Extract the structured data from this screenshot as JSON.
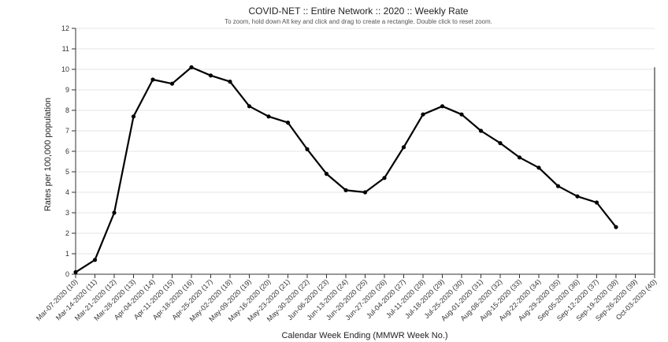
{
  "chart_data": {
    "type": "line",
    "title": "COVID-NET :: Entire Network :: 2020 :: Weekly Rate",
    "subtitle": "To zoom, hold down Alt key and click and drag to create a rectangle. Double click to reset zoom.",
    "xlabel": "Calendar Week Ending (MMWR Week No.)",
    "ylabel": "Rates per 100,000 population",
    "ylim": [
      0,
      12
    ],
    "yticks": [
      0,
      1,
      2,
      3,
      4,
      5,
      6,
      7,
      8,
      9,
      10,
      11,
      12
    ],
    "grid": true,
    "categories": [
      "Mar-07-2020 (10)",
      "Mar-14-2020 (11)",
      "Mar-21-2020 (12)",
      "Mar-28-2020 (13)",
      "Apr-04-2020 (14)",
      "Apr-11-2020 (15)",
      "Apr-18-2020 (16)",
      "Apr-25-2020 (17)",
      "May-02-2020 (18)",
      "May-09-2020 (19)",
      "May-16-2020 (20)",
      "May-23-2020 (21)",
      "May-30-2020 (22)",
      "Jun-06-2020 (23)",
      "Jun-13-2020 (24)",
      "Jun-20-2020 (25)",
      "Jun-27-2020 (26)",
      "Jul-04-2020 (27)",
      "Jul-11-2020 (28)",
      "Jul-18-2020 (29)",
      "Jul-25-2020 (30)",
      "Aug-01-2020 (31)",
      "Aug-08-2020 (32)",
      "Aug-15-2020 (33)",
      "Aug-22-2020 (34)",
      "Aug-29-2020 (35)",
      "Sep-05-2020 (36)",
      "Sep-12-2020 (37)",
      "Sep-19-2020 (38)",
      "Sep-26-2020 (39)",
      "Oct-03-2020 (40)"
    ],
    "series": [
      {
        "values": [
          0.1,
          0.7,
          3.0,
          7.7,
          9.5,
          9.3,
          10.1,
          9.7,
          9.4,
          8.2,
          7.7,
          7.4,
          6.1,
          4.9,
          4.1,
          4.0,
          4.7,
          6.2,
          7.8,
          8.2,
          7.8,
          7.0,
          6.4,
          5.7,
          5.2,
          4.3,
          3.8,
          3.5,
          2.3,
          null,
          null
        ]
      }
    ]
  }
}
